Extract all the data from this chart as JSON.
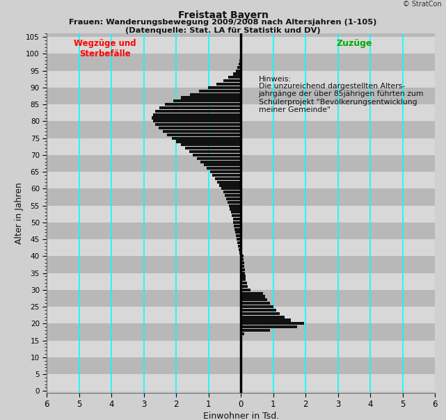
{
  "title_line1": "Freistaat Bayern",
  "title_line2": "Frauen: Wanderungsbewegung 2009/2008 nach Altersjahren (1-105)",
  "title_line3": "(Datenquelle: Stat. LA für Statistik und DV)",
  "xlabel": "Einwohner in Tsd.",
  "ylabel": "Alter in Jahren",
  "copyright": "© StratCon",
  "xlim": [
    -6,
    6
  ],
  "ylim": [
    -0.5,
    106
  ],
  "yticks": [
    0,
    5,
    10,
    15,
    20,
    25,
    30,
    35,
    40,
    45,
    50,
    55,
    60,
    65,
    70,
    75,
    80,
    85,
    90,
    95,
    100,
    105
  ],
  "xticks": [
    -6,
    -5,
    -4,
    -3,
    -2,
    -1,
    0,
    1,
    2,
    3,
    4,
    5,
    6
  ],
  "xticklabels": [
    "6",
    "5",
    "4",
    "3",
    "2",
    "1",
    "0",
    "1",
    "2",
    "3",
    "4",
    "5",
    "6"
  ],
  "label_wegzuge": "Wegzüge und\nSterbefälle",
  "label_zuzuge": "Zuzüge",
  "hinweis_title": "Hinweis:",
  "hinweis_body": "Die unzureichend dargestellten Alters-\njahrgänge der über 85jährigen führten zum\nSchülerprojekt \"Bevölkerungsentwicklung\nmeiner Gemeinde\"",
  "bg_color": "#d0d0d0",
  "band_light": "#d8d8d8",
  "band_dark": "#b8b8b8",
  "cyan_lines": [
    -5,
    -4,
    -3,
    -2,
    -1,
    1,
    2,
    3,
    4,
    5
  ],
  "ages": [
    1,
    2,
    3,
    4,
    5,
    6,
    7,
    8,
    9,
    10,
    11,
    12,
    13,
    14,
    15,
    16,
    17,
    18,
    19,
    20,
    21,
    22,
    23,
    24,
    25,
    26,
    27,
    28,
    29,
    30,
    31,
    32,
    33,
    34,
    35,
    36,
    37,
    38,
    39,
    40,
    41,
    42,
    43,
    44,
    45,
    46,
    47,
    48,
    49,
    50,
    51,
    52,
    53,
    54,
    55,
    56,
    57,
    58,
    59,
    60,
    61,
    62,
    63,
    64,
    65,
    66,
    67,
    68,
    69,
    70,
    71,
    72,
    73,
    74,
    75,
    76,
    77,
    78,
    79,
    80,
    81,
    82,
    83,
    84,
    85,
    86,
    87,
    88,
    89,
    90,
    91,
    92,
    93,
    94,
    95,
    96,
    97,
    98,
    99,
    100,
    101,
    102,
    103,
    104,
    105
  ],
  "values": [
    0.03,
    0.02,
    0.01,
    0.01,
    0.01,
    0.01,
    0.01,
    0.01,
    0.05,
    0.03,
    0.02,
    0.02,
    0.02,
    0.02,
    0.03,
    0.05,
    0.1,
    0.9,
    1.75,
    1.95,
    1.55,
    1.35,
    1.2,
    1.1,
    1.0,
    0.9,
    0.82,
    0.75,
    0.68,
    0.3,
    0.22,
    0.18,
    0.15,
    0.14,
    0.13,
    0.12,
    0.11,
    0.1,
    0.09,
    0.08,
    -0.05,
    -0.07,
    -0.09,
    -0.11,
    -0.13,
    -0.15,
    -0.17,
    -0.19,
    -0.21,
    -0.23,
    -0.25,
    -0.28,
    -0.31,
    -0.34,
    -0.37,
    -0.41,
    -0.45,
    -0.5,
    -0.55,
    -0.6,
    -0.66,
    -0.73,
    -0.8,
    -0.88,
    -0.96,
    -1.05,
    -1.15,
    -1.25,
    -1.36,
    -1.48,
    -1.6,
    -1.73,
    -1.86,
    -2.0,
    -2.14,
    -2.28,
    -2.42,
    -2.55,
    -2.65,
    -2.72,
    -2.75,
    -2.72,
    -2.65,
    -2.52,
    -2.35,
    -2.1,
    -1.85,
    -1.58,
    -1.3,
    -1.02,
    -0.75,
    -0.55,
    -0.38,
    -0.25,
    -0.16,
    -0.1,
    -0.06,
    -0.04,
    -0.02,
    -0.01,
    -0.01,
    0.0,
    0.0,
    0.0,
    0.0
  ],
  "bar_color": "#111111",
  "bar_height": 0.85
}
